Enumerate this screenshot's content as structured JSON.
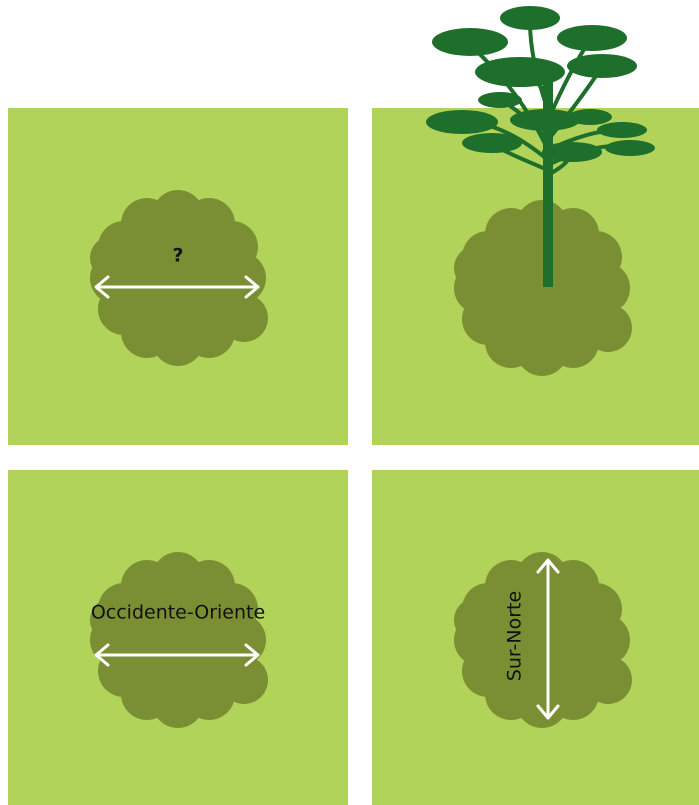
{
  "labels": {
    "unknown": "?",
    "east_west": "Occidente-Oriente",
    "south_north": "Sur-Norte"
  }
}
